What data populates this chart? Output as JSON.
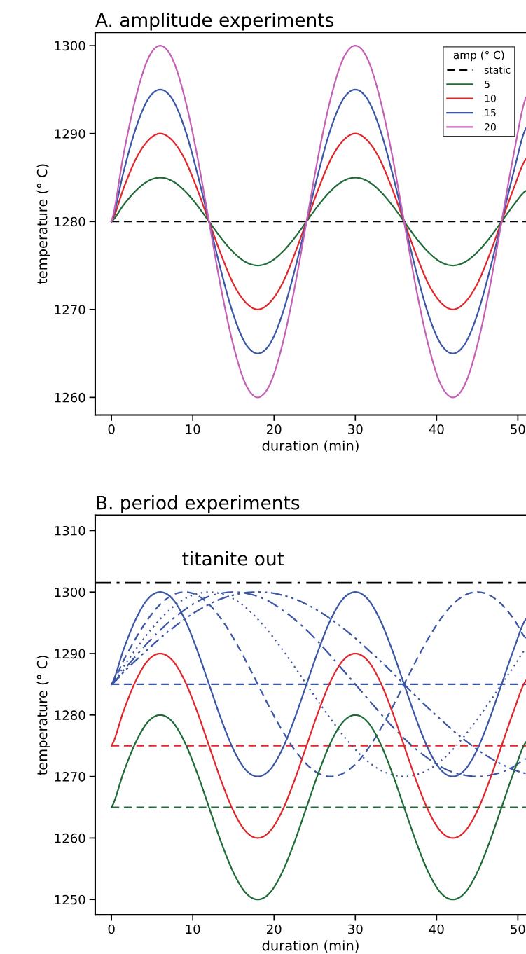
{
  "chart_data": [
    {
      "type": "line",
      "title": "A. amplitude experiments",
      "xlabel": "duration (min)",
      "ylabel": "temperature (° C)",
      "legend_title": "amp (° C)",
      "legend": "top right",
      "grid": false,
      "x": [
        0,
        1.5,
        3,
        4.5,
        6,
        7.5,
        9,
        10.5,
        12,
        13.5,
        15,
        16.5,
        18,
        19.5,
        21,
        22.5,
        24,
        25.5,
        27,
        28.5,
        30,
        31.5,
        33,
        34.5,
        36,
        37.5,
        39,
        40.5,
        42,
        43.5,
        45,
        46.5,
        48,
        49.5,
        51
      ],
      "xlim": [
        -2,
        51
      ],
      "xticks": [
        0,
        10,
        20,
        30,
        40,
        50
      ],
      "ylim": [
        1258,
        1301.5
      ],
      "yticks": [
        1260,
        1270,
        1280,
        1290,
        1300
      ],
      "series": [
        {
          "name": "static",
          "color": "#000000",
          "line_style": "dashed",
          "values": [
            1280,
            1280,
            1280,
            1280,
            1280,
            1280,
            1280,
            1280,
            1280,
            1280,
            1280,
            1280,
            1280,
            1280,
            1280,
            1280,
            1280,
            1280,
            1280,
            1280,
            1280,
            1280,
            1280,
            1280,
            1280,
            1280,
            1280,
            1280,
            1280,
            1280,
            1280,
            1280,
            1280,
            1280,
            1280
          ]
        },
        {
          "name": "5",
          "color": "#1e6b37",
          "line_style": "solid",
          "values": [
            1280,
            1281.9,
            1283.5,
            1284.6,
            1285,
            1284.6,
            1283.5,
            1281.9,
            1280,
            1278.1,
            1276.5,
            1275.4,
            1275,
            1275.4,
            1276.5,
            1278.1,
            1280,
            1281.9,
            1283.5,
            1284.6,
            1285,
            1284.6,
            1283.5,
            1281.9,
            1280,
            1278.1,
            1276.5,
            1275.4,
            1275,
            1275.4,
            1276.5,
            1278.1,
            1280,
            1281.9,
            1283.5
          ]
        },
        {
          "name": "10",
          "color": "#e0262b",
          "line_style": "solid",
          "values": [
            1280,
            1283.8,
            1287.1,
            1289.2,
            1290,
            1289.2,
            1287.1,
            1283.8,
            1280,
            1276.2,
            1272.9,
            1270.8,
            1270,
            1270.8,
            1272.9,
            1276.2,
            1280,
            1283.8,
            1287.1,
            1289.2,
            1290,
            1289.2,
            1287.1,
            1283.8,
            1280,
            1276.2,
            1272.9,
            1270.8,
            1270,
            1270.8,
            1272.9,
            1276.2,
            1280,
            1283.8,
            1287.1
          ]
        },
        {
          "name": "15",
          "color": "#3a56a5",
          "line_style": "solid",
          "values": [
            1280,
            1285.7,
            1290.6,
            1293.9,
            1295,
            1293.9,
            1290.6,
            1285.7,
            1280,
            1274.3,
            1269.4,
            1266.1,
            1265,
            1266.1,
            1269.4,
            1274.3,
            1280,
            1285.7,
            1290.6,
            1293.9,
            1295,
            1293.9,
            1290.6,
            1285.7,
            1280,
            1274.3,
            1269.4,
            1266.1,
            1265,
            1266.1,
            1269.4,
            1274.3,
            1280,
            1285.7,
            1290.6
          ]
        },
        {
          "name": "20",
          "color": "#c460b5",
          "line_style": "solid",
          "values": [
            1280,
            1287.7,
            1294.1,
            1298.5,
            1300,
            1298.5,
            1294.1,
            1287.7,
            1280,
            1272.3,
            1265.9,
            1261.5,
            1260,
            1261.5,
            1265.9,
            1272.3,
            1280,
            1287.7,
            1294.1,
            1298.5,
            1300,
            1298.5,
            1294.1,
            1287.7,
            1280,
            1272.3,
            1265.9,
            1261.5,
            1260,
            1261.5,
            1265.9,
            1272.3,
            1280,
            1287.7,
            1294.1
          ]
        }
      ]
    },
    {
      "type": "line",
      "title": "B. period experiments",
      "xlabel": "duration (min)",
      "ylabel": "temperature (° C)",
      "grid": false,
      "x": [
        0,
        1.5,
        3,
        4.5,
        6,
        7.5,
        9,
        10.5,
        12,
        13.5,
        15,
        16.5,
        18,
        19.5,
        21,
        22.5,
        24,
        25.5,
        27,
        28.5,
        30,
        31.5,
        33,
        34.5,
        36,
        37.5,
        39,
        40.5,
        42,
        43.5,
        45,
        46.5,
        48,
        49.5,
        51
      ],
      "xlim": [
        -2,
        51
      ],
      "xticks": [
        0,
        10,
        20,
        30,
        40,
        50
      ],
      "ylim": [
        1247.5,
        1312.5
      ],
      "yticks": [
        1250,
        1260,
        1270,
        1280,
        1290,
        1300,
        1310
      ],
      "ref_lines": [
        {
          "axis": "y",
          "value": 1301.5,
          "label": "titanite out",
          "color": "#000000",
          "line_style": "dashdot"
        }
      ],
      "series": [
        {
          "color": "#3a56a5",
          "line_style": "dashed",
          "values": [
            1285,
            1285,
            1285,
            1285,
            1285,
            1285,
            1285,
            1285,
            1285,
            1285,
            1285,
            1285,
            1285,
            1285,
            1285,
            1285,
            1285,
            1285,
            1285,
            1285,
            1285,
            1285,
            1285,
            1285,
            1285,
            1285,
            1285,
            1285,
            1285,
            1285,
            1285,
            1285,
            1285,
            1285,
            1285
          ]
        },
        {
          "color": "#e0262b",
          "line_style": "dashed",
          "values": [
            1275,
            1275,
            1275,
            1275,
            1275,
            1275,
            1275,
            1275,
            1275,
            1275,
            1275,
            1275,
            1275,
            1275,
            1275,
            1275,
            1275,
            1275,
            1275,
            1275,
            1275,
            1275,
            1275,
            1275,
            1275,
            1275,
            1275,
            1275,
            1275,
            1275,
            1275,
            1275,
            1275,
            1275,
            1275
          ]
        },
        {
          "color": "#1e6b37",
          "line_style": "dashed",
          "values": [
            1265,
            1265,
            1265,
            1265,
            1265,
            1265,
            1265,
            1265,
            1265,
            1265,
            1265,
            1265,
            1265,
            1265,
            1265,
            1265,
            1265,
            1265,
            1265,
            1265,
            1265,
            1265,
            1265,
            1265,
            1265,
            1265,
            1265,
            1265,
            1265,
            1265,
            1265,
            1265,
            1265,
            1265,
            1265
          ]
        },
        {
          "color": "#3a56a5",
          "line_style": "dashed",
          "values": [
            1285,
            1288.9,
            1292.5,
            1295.6,
            1298,
            1299.5,
            1300,
            1299.5,
            1298,
            1295.6,
            1292.5,
            1288.9,
            1285,
            1281.1,
            1277.5,
            1274.4,
            1272,
            1270.5,
            1270,
            1270.5,
            1272,
            1274.4,
            1277.5,
            1281.1,
            1285,
            1288.9,
            1292.5,
            1295.6,
            1298,
            1299.5,
            1300,
            1299.5,
            1298,
            1295.6,
            1292.5
          ]
        },
        {
          "color": "#3a56a5",
          "line_style": "dotted",
          "values": [
            1285,
            1287.9,
            1290.7,
            1293.3,
            1295.6,
            1297.5,
            1298.9,
            1299.7,
            1300,
            1299.7,
            1298.9,
            1297.5,
            1295.6,
            1293.3,
            1290.7,
            1287.9,
            1285,
            1282.1,
            1279.3,
            1276.7,
            1274.4,
            1272.5,
            1271.1,
            1270.3,
            1270,
            1270.3,
            1271.1,
            1272.5,
            1274.4,
            1276.7,
            1279.3,
            1282.1,
            1285,
            1287.9,
            1290.7
          ]
        },
        {
          "color": "#3a56a5",
          "line_style": "dashdot",
          "values": [
            1285,
            1287.3,
            1289.6,
            1291.8,
            1293.8,
            1295.6,
            1297.1,
            1298.4,
            1299.3,
            1299.8,
            1300,
            1299.8,
            1299.3,
            1298.4,
            1297.1,
            1295.6,
            1293.8,
            1291.8,
            1289.6,
            1287.3,
            1285,
            1282.7,
            1280.4,
            1278.2,
            1276.2,
            1274.4,
            1272.9,
            1271.6,
            1270.7,
            1270.2,
            1270,
            1270.2,
            1270.7,
            1271.6,
            1272.9
          ]
        },
        {
          "color": "#3a56a5",
          "line_style": "dashdotdot",
          "values": [
            1285,
            1287,
            1288.9,
            1290.7,
            1292.5,
            1294.1,
            1295.6,
            1296.9,
            1298,
            1298.9,
            1299.5,
            1299.9,
            1300,
            1299.9,
            1299.5,
            1298.9,
            1298,
            1296.9,
            1295.6,
            1294.1,
            1292.5,
            1290.7,
            1288.9,
            1287,
            1285,
            1283,
            1281.1,
            1279.3,
            1277.5,
            1275.9,
            1274.4,
            1273.1,
            1272,
            1271.1,
            1270.5
          ]
        },
        {
          "color": "#3a56a5",
          "line_style": "solid",
          "values": [
            1285,
            1290.7,
            1295.6,
            1298.9,
            1300,
            1298.9,
            1295.6,
            1290.7,
            1285,
            1279.3,
            1274.4,
            1271.1,
            1270,
            1271.1,
            1274.4,
            1279.3,
            1285,
            1290.7,
            1295.6,
            1298.9,
            1300,
            1298.9,
            1295.6,
            1290.7,
            1285,
            1279.3,
            1274.4,
            1271.1,
            1270,
            1271.1,
            1274.4,
            1279.3,
            1285,
            1290.7,
            1295.6
          ]
        },
        {
          "color": "#e0262b",
          "line_style": "solid",
          "values": [
            1275,
            1280.7,
            1285.6,
            1288.9,
            1290,
            1288.9,
            1285.6,
            1280.7,
            1275,
            1269.3,
            1264.4,
            1261.1,
            1260,
            1261.1,
            1264.4,
            1269.3,
            1275,
            1280.7,
            1285.6,
            1288.9,
            1290,
            1288.9,
            1285.6,
            1280.7,
            1275,
            1269.3,
            1264.4,
            1261.1,
            1260,
            1261.1,
            1264.4,
            1269.3,
            1275,
            1280.7,
            1285.6
          ]
        },
        {
          "color": "#1e6b37",
          "line_style": "solid",
          "values": [
            1265,
            1270.7,
            1275.6,
            1278.9,
            1280,
            1278.9,
            1275.6,
            1270.7,
            1265,
            1259.3,
            1254.4,
            1251.1,
            1250,
            1251.1,
            1254.4,
            1259.3,
            1265,
            1270.7,
            1275.6,
            1278.9,
            1280,
            1278.9,
            1275.6,
            1270.7,
            1265,
            1259.3,
            1254.4,
            1251.1,
            1250,
            1251.1,
            1254.4,
            1259.3,
            1265,
            1270.7,
            1275.6
          ]
        }
      ]
    }
  ]
}
